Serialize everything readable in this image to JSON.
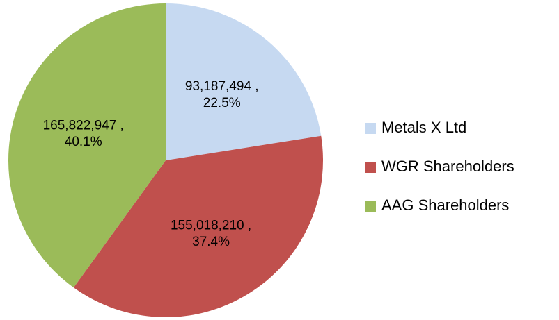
{
  "chart_data": {
    "type": "pie",
    "categories": [
      "Metals X Ltd",
      "WGR Shareholders",
      "AAG Shareholders"
    ],
    "values": [
      93187494,
      155018210,
      165822947
    ],
    "value_labels": [
      "93,187,494 ,",
      "155,018,210 ,",
      "165,822,947 ,"
    ],
    "percentages": [
      22.5,
      37.4,
      40.1
    ],
    "percentage_labels": [
      "22.5%",
      "37.4%",
      "40.1%"
    ],
    "colors": [
      "#c6d9f1",
      "#c0504d",
      "#9bbb59"
    ],
    "legend": "right"
  }
}
